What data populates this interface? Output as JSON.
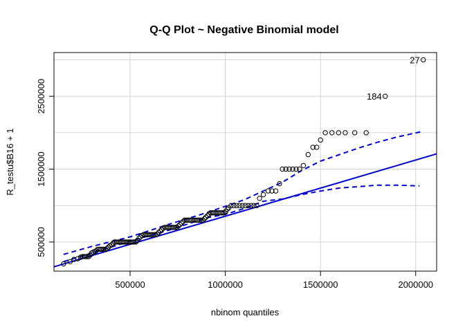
{
  "chart_data": {
    "type": "scatter",
    "title": "Q-Q Plot ~ Negative Binomial model",
    "xlabel": "nbinom quantiles",
    "ylabel": "R_testu$B16 + 1",
    "xlim": [
      100000,
      2110000
    ],
    "ylim": [
      100000,
      3100000
    ],
    "x_ticks": [
      500000,
      1000000,
      1500000,
      2000000
    ],
    "x_tick_labels": [
      "500000",
      "1000000",
      "1500000",
      "2000000"
    ],
    "y_ticks": [
      500000,
      1500000,
      2500000
    ],
    "y_tick_labels": [
      "500000",
      "1500000",
      "2500000"
    ],
    "grid_y": [
      500000,
      1000000,
      1500000,
      2000000,
      2500000,
      3000000
    ],
    "grid": true,
    "colors": {
      "points": "#000000",
      "fit_line": "#0000cc",
      "band": "#0000cc",
      "grid": "#d3d3d3"
    },
    "points": [
      [
        150000,
        200000
      ],
      [
        185000,
        230000
      ],
      [
        205000,
        260000
      ],
      [
        225000,
        270000
      ],
      [
        240000,
        290000
      ],
      [
        250000,
        300000
      ],
      [
        258000,
        300000
      ],
      [
        266000,
        300000
      ],
      [
        274000,
        300000
      ],
      [
        282000,
        300000
      ],
      [
        290000,
        320000
      ],
      [
        298000,
        350000
      ],
      [
        306000,
        360000
      ],
      [
        314000,
        370000
      ],
      [
        322000,
        380000
      ],
      [
        330000,
        400000
      ],
      [
        338000,
        400000
      ],
      [
        346000,
        400000
      ],
      [
        354000,
        400000
      ],
      [
        362000,
        400000
      ],
      [
        370000,
        400000
      ],
      [
        378000,
        410000
      ],
      [
        386000,
        430000
      ],
      [
        394000,
        450000
      ],
      [
        402000,
        460000
      ],
      [
        410000,
        480000
      ],
      [
        418000,
        500000
      ],
      [
        426000,
        500000
      ],
      [
        434000,
        500000
      ],
      [
        442000,
        500000
      ],
      [
        450000,
        500000
      ],
      [
        458000,
        500000
      ],
      [
        466000,
        500000
      ],
      [
        474000,
        500000
      ],
      [
        482000,
        500000
      ],
      [
        490000,
        500000
      ],
      [
        498000,
        500000
      ],
      [
        506000,
        500000
      ],
      [
        514000,
        500000
      ],
      [
        522000,
        500000
      ],
      [
        530000,
        500000
      ],
      [
        538000,
        520000
      ],
      [
        546000,
        550000
      ],
      [
        554000,
        570000
      ],
      [
        562000,
        590000
      ],
      [
        570000,
        600000
      ],
      [
        578000,
        600000
      ],
      [
        586000,
        600000
      ],
      [
        594000,
        600000
      ],
      [
        602000,
        600000
      ],
      [
        610000,
        600000
      ],
      [
        618000,
        600000
      ],
      [
        626000,
        600000
      ],
      [
        634000,
        600000
      ],
      [
        642000,
        610000
      ],
      [
        650000,
        630000
      ],
      [
        658000,
        650000
      ],
      [
        666000,
        670000
      ],
      [
        674000,
        690000
      ],
      [
        682000,
        700000
      ],
      [
        690000,
        700000
      ],
      [
        698000,
        700000
      ],
      [
        706000,
        700000
      ],
      [
        714000,
        700000
      ],
      [
        722000,
        700000
      ],
      [
        730000,
        700000
      ],
      [
        738000,
        700000
      ],
      [
        746000,
        700000
      ],
      [
        754000,
        720000
      ],
      [
        762000,
        740000
      ],
      [
        770000,
        760000
      ],
      [
        778000,
        780000
      ],
      [
        786000,
        800000
      ],
      [
        794000,
        800000
      ],
      [
        802000,
        800000
      ],
      [
        810000,
        800000
      ],
      [
        818000,
        800000
      ],
      [
        826000,
        800000
      ],
      [
        834000,
        800000
      ],
      [
        842000,
        800000
      ],
      [
        850000,
        800000
      ],
      [
        858000,
        800000
      ],
      [
        866000,
        800000
      ],
      [
        874000,
        800000
      ],
      [
        882000,
        800000
      ],
      [
        890000,
        820000
      ],
      [
        898000,
        840000
      ],
      [
        906000,
        860000
      ],
      [
        914000,
        880000
      ],
      [
        922000,
        900000
      ],
      [
        930000,
        900000
      ],
      [
        938000,
        900000
      ],
      [
        946000,
        900000
      ],
      [
        954000,
        900000
      ],
      [
        962000,
        900000
      ],
      [
        970000,
        900000
      ],
      [
        978000,
        900000
      ],
      [
        986000,
        900000
      ],
      [
        994000,
        900000
      ],
      [
        1002000,
        920000
      ],
      [
        1010000,
        950000
      ],
      [
        1018000,
        970000
      ],
      [
        1030000,
        1000000
      ],
      [
        1045000,
        1000000
      ],
      [
        1060000,
        1000000
      ],
      [
        1075000,
        1000000
      ],
      [
        1090000,
        1000000
      ],
      [
        1105000,
        1000000
      ],
      [
        1120000,
        1000000
      ],
      [
        1135000,
        1000000
      ],
      [
        1150000,
        1000000
      ],
      [
        1165000,
        1000000
      ],
      [
        1180000,
        1100000
      ],
      [
        1200000,
        1150000
      ],
      [
        1225000,
        1200000
      ],
      [
        1245000,
        1200000
      ],
      [
        1265000,
        1200000
      ],
      [
        1285000,
        1300000
      ],
      [
        1300000,
        1500000
      ],
      [
        1318000,
        1500000
      ],
      [
        1336000,
        1500000
      ],
      [
        1354000,
        1500000
      ],
      [
        1372000,
        1500000
      ],
      [
        1390000,
        1500000
      ],
      [
        1410000,
        1550000
      ],
      [
        1435000,
        1700000
      ],
      [
        1460000,
        1800000
      ],
      [
        1480000,
        1800000
      ],
      [
        1500000,
        1900000
      ],
      [
        1525000,
        2000000
      ],
      [
        1560000,
        2000000
      ],
      [
        1595000,
        2000000
      ],
      [
        1630000,
        2000000
      ],
      [
        1680000,
        2000000
      ],
      [
        1740000,
        2000000
      ],
      [
        1840000,
        2500000
      ],
      [
        2040000,
        3000000
      ]
    ],
    "fit_line": [
      [
        100000,
        160000
      ],
      [
        2110000,
        1710000
      ]
    ],
    "band_upper": [
      [
        150000,
        330000
      ],
      [
        300000,
        440000
      ],
      [
        500000,
        570000
      ],
      [
        700000,
        740000
      ],
      [
        900000,
        900000
      ],
      [
        1000000,
        990000
      ],
      [
        1100000,
        1080000
      ],
      [
        1200000,
        1200000
      ],
      [
        1300000,
        1320000
      ],
      [
        1400000,
        1480000
      ],
      [
        1500000,
        1610000
      ],
      [
        1600000,
        1700000
      ],
      [
        1700000,
        1790000
      ],
      [
        1800000,
        1870000
      ],
      [
        1900000,
        1940000
      ],
      [
        2040000,
        2020000
      ]
    ],
    "band_lower": [
      [
        150000,
        230000
      ],
      [
        300000,
        350000
      ],
      [
        500000,
        510000
      ],
      [
        700000,
        660000
      ],
      [
        900000,
        830000
      ],
      [
        1000000,
        880000
      ],
      [
        1100000,
        960000
      ],
      [
        1200000,
        1060000
      ],
      [
        1300000,
        1090000
      ],
      [
        1400000,
        1150000
      ],
      [
        1500000,
        1200000
      ],
      [
        1600000,
        1240000
      ],
      [
        1700000,
        1260000
      ],
      [
        1800000,
        1280000
      ],
      [
        1900000,
        1280000
      ],
      [
        2020000,
        1270000
      ]
    ],
    "annotations": [
      {
        "label": "27",
        "x": 2040000,
        "y": 3000000
      },
      {
        "label": "184",
        "x": 1840000,
        "y": 2500000
      }
    ]
  }
}
